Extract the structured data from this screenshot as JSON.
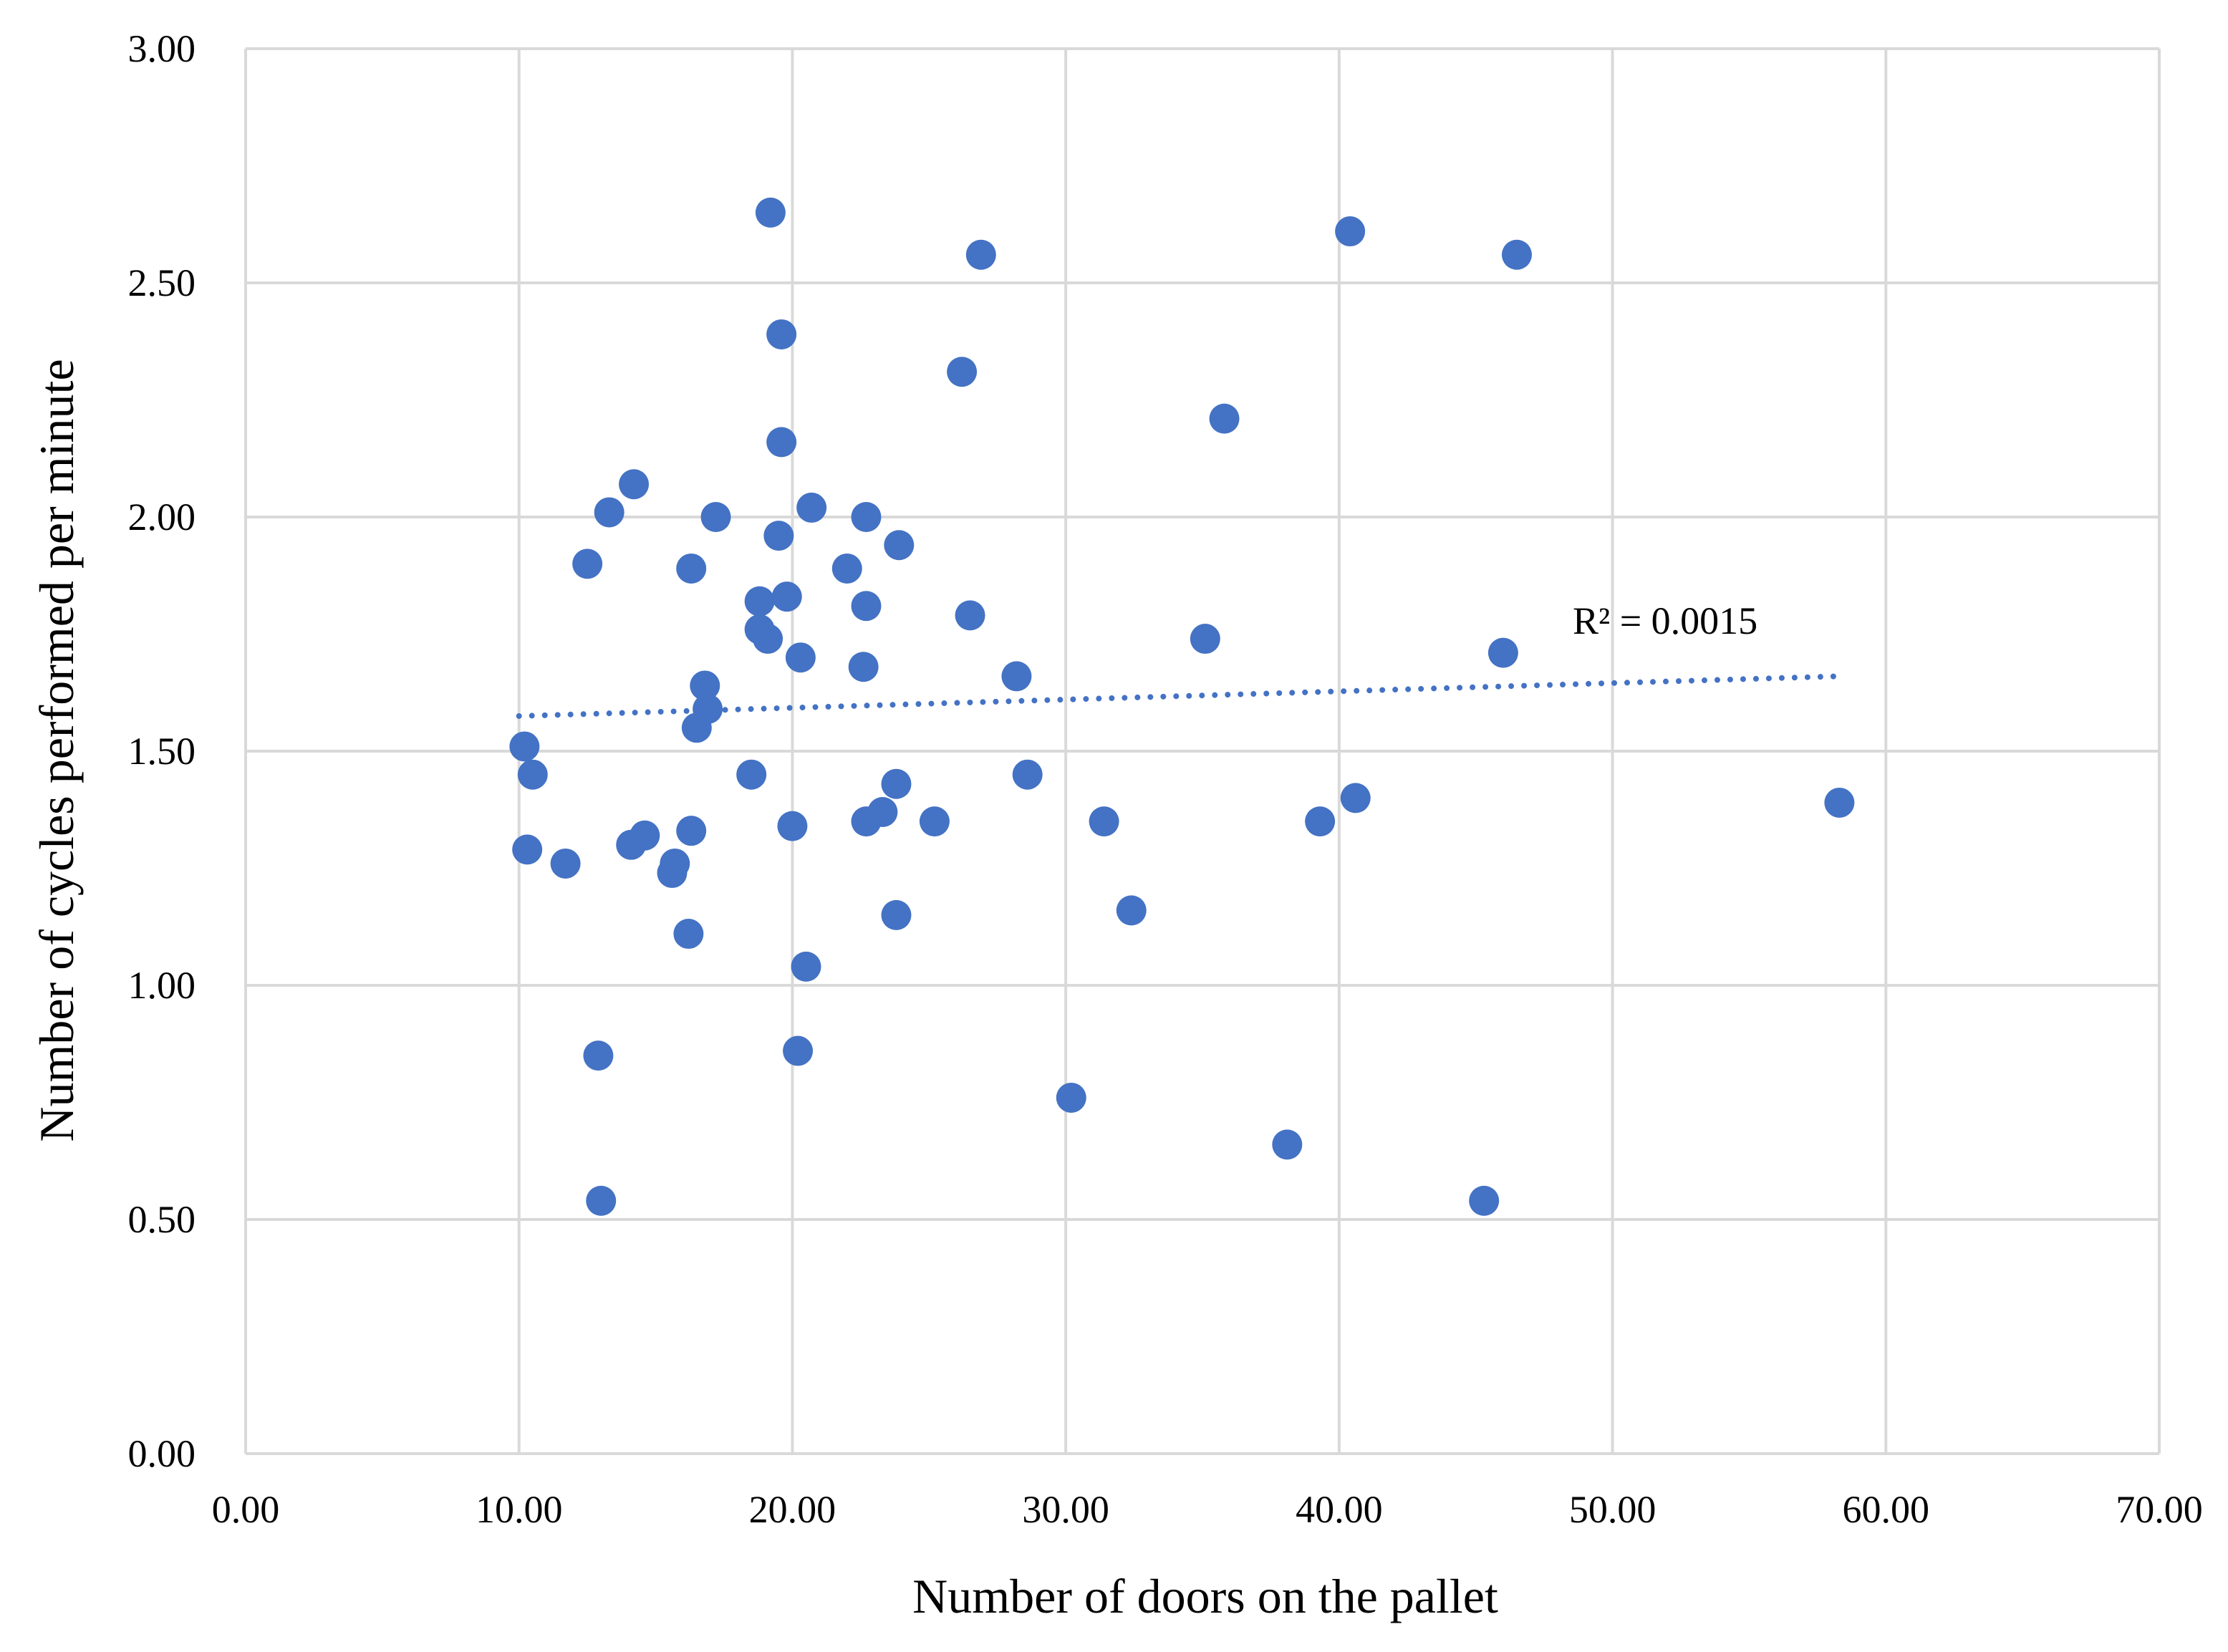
{
  "chart_data": {
    "type": "scatter",
    "xlabel": "Number of doors on the pallet",
    "ylabel": "Number of cycles performed per minute",
    "xlim": [
      0,
      70
    ],
    "ylim": [
      0,
      3
    ],
    "x_ticks": [
      0,
      10,
      20,
      30,
      40,
      50,
      60,
      70
    ],
    "y_ticks": [
      0,
      0.5,
      1,
      1.5,
      2,
      2.5,
      3
    ],
    "x_tick_labels": [
      "0.00",
      "10.00",
      "20.00",
      "30.00",
      "40.00",
      "50.00",
      "60.00",
      "70.00"
    ],
    "y_tick_labels": [
      "0.00",
      "0.50",
      "1.00",
      "1.50",
      "2.00",
      "2.50",
      "3.00"
    ],
    "grid": true,
    "marker_color": "#4472C4",
    "gridline_color": "#D9D9D9",
    "series": [
      {
        "points": [
          [
            10.2,
            1.51
          ],
          [
            10.3,
            1.29
          ],
          [
            10.5,
            1.45
          ],
          [
            11.7,
            1.26
          ],
          [
            12.5,
            1.9
          ],
          [
            12.9,
            0.85
          ],
          [
            13.0,
            0.54
          ],
          [
            13.3,
            2.01
          ],
          [
            14.1,
            1.3
          ],
          [
            14.2,
            2.07
          ],
          [
            14.6,
            1.32
          ],
          [
            15.6,
            1.24
          ],
          [
            15.7,
            1.26
          ],
          [
            16.2,
            1.11
          ],
          [
            16.3,
            1.89
          ],
          [
            16.3,
            1.33
          ],
          [
            16.5,
            1.55
          ],
          [
            16.8,
            1.64
          ],
          [
            16.9,
            1.59
          ],
          [
            17.2,
            2.0
          ],
          [
            18.5,
            1.45
          ],
          [
            18.8,
            1.82
          ],
          [
            18.8,
            1.76
          ],
          [
            19.1,
            1.74
          ],
          [
            19.2,
            2.65
          ],
          [
            19.5,
            1.96
          ],
          [
            19.6,
            2.16
          ],
          [
            19.6,
            2.39
          ],
          [
            19.8,
            1.83
          ],
          [
            20.0,
            1.34
          ],
          [
            20.2,
            0.86
          ],
          [
            20.3,
            1.7
          ],
          [
            20.5,
            1.04
          ],
          [
            20.7,
            2.02
          ],
          [
            22.0,
            1.89
          ],
          [
            22.6,
            1.68
          ],
          [
            22.7,
            1.81
          ],
          [
            22.7,
            2.0
          ],
          [
            22.7,
            1.35
          ],
          [
            23.3,
            1.37
          ],
          [
            23.8,
            1.15
          ],
          [
            23.8,
            1.43
          ],
          [
            23.9,
            1.94
          ],
          [
            25.2,
            1.35
          ],
          [
            26.2,
            2.31
          ],
          [
            26.5,
            1.79
          ],
          [
            26.9,
            2.56
          ],
          [
            28.2,
            1.66
          ],
          [
            28.6,
            1.45
          ],
          [
            30.2,
            0.76
          ],
          [
            31.4,
            1.35
          ],
          [
            32.4,
            1.16
          ],
          [
            35.1,
            1.74
          ],
          [
            35.8,
            2.21
          ],
          [
            38.1,
            0.66
          ],
          [
            39.3,
            1.35
          ],
          [
            40.4,
            2.61
          ],
          [
            40.6,
            1.4
          ],
          [
            45.3,
            0.54
          ],
          [
            46.0,
            1.71
          ],
          [
            46.5,
            2.56
          ],
          [
            58.3,
            1.39
          ]
        ]
      }
    ],
    "trendline": {
      "type": "linear",
      "style": "dotted",
      "x_range": [
        10.0,
        58.3
      ],
      "y_start": 1.575,
      "y_end": 1.66,
      "r2_label": "R² = 0.0015"
    }
  }
}
